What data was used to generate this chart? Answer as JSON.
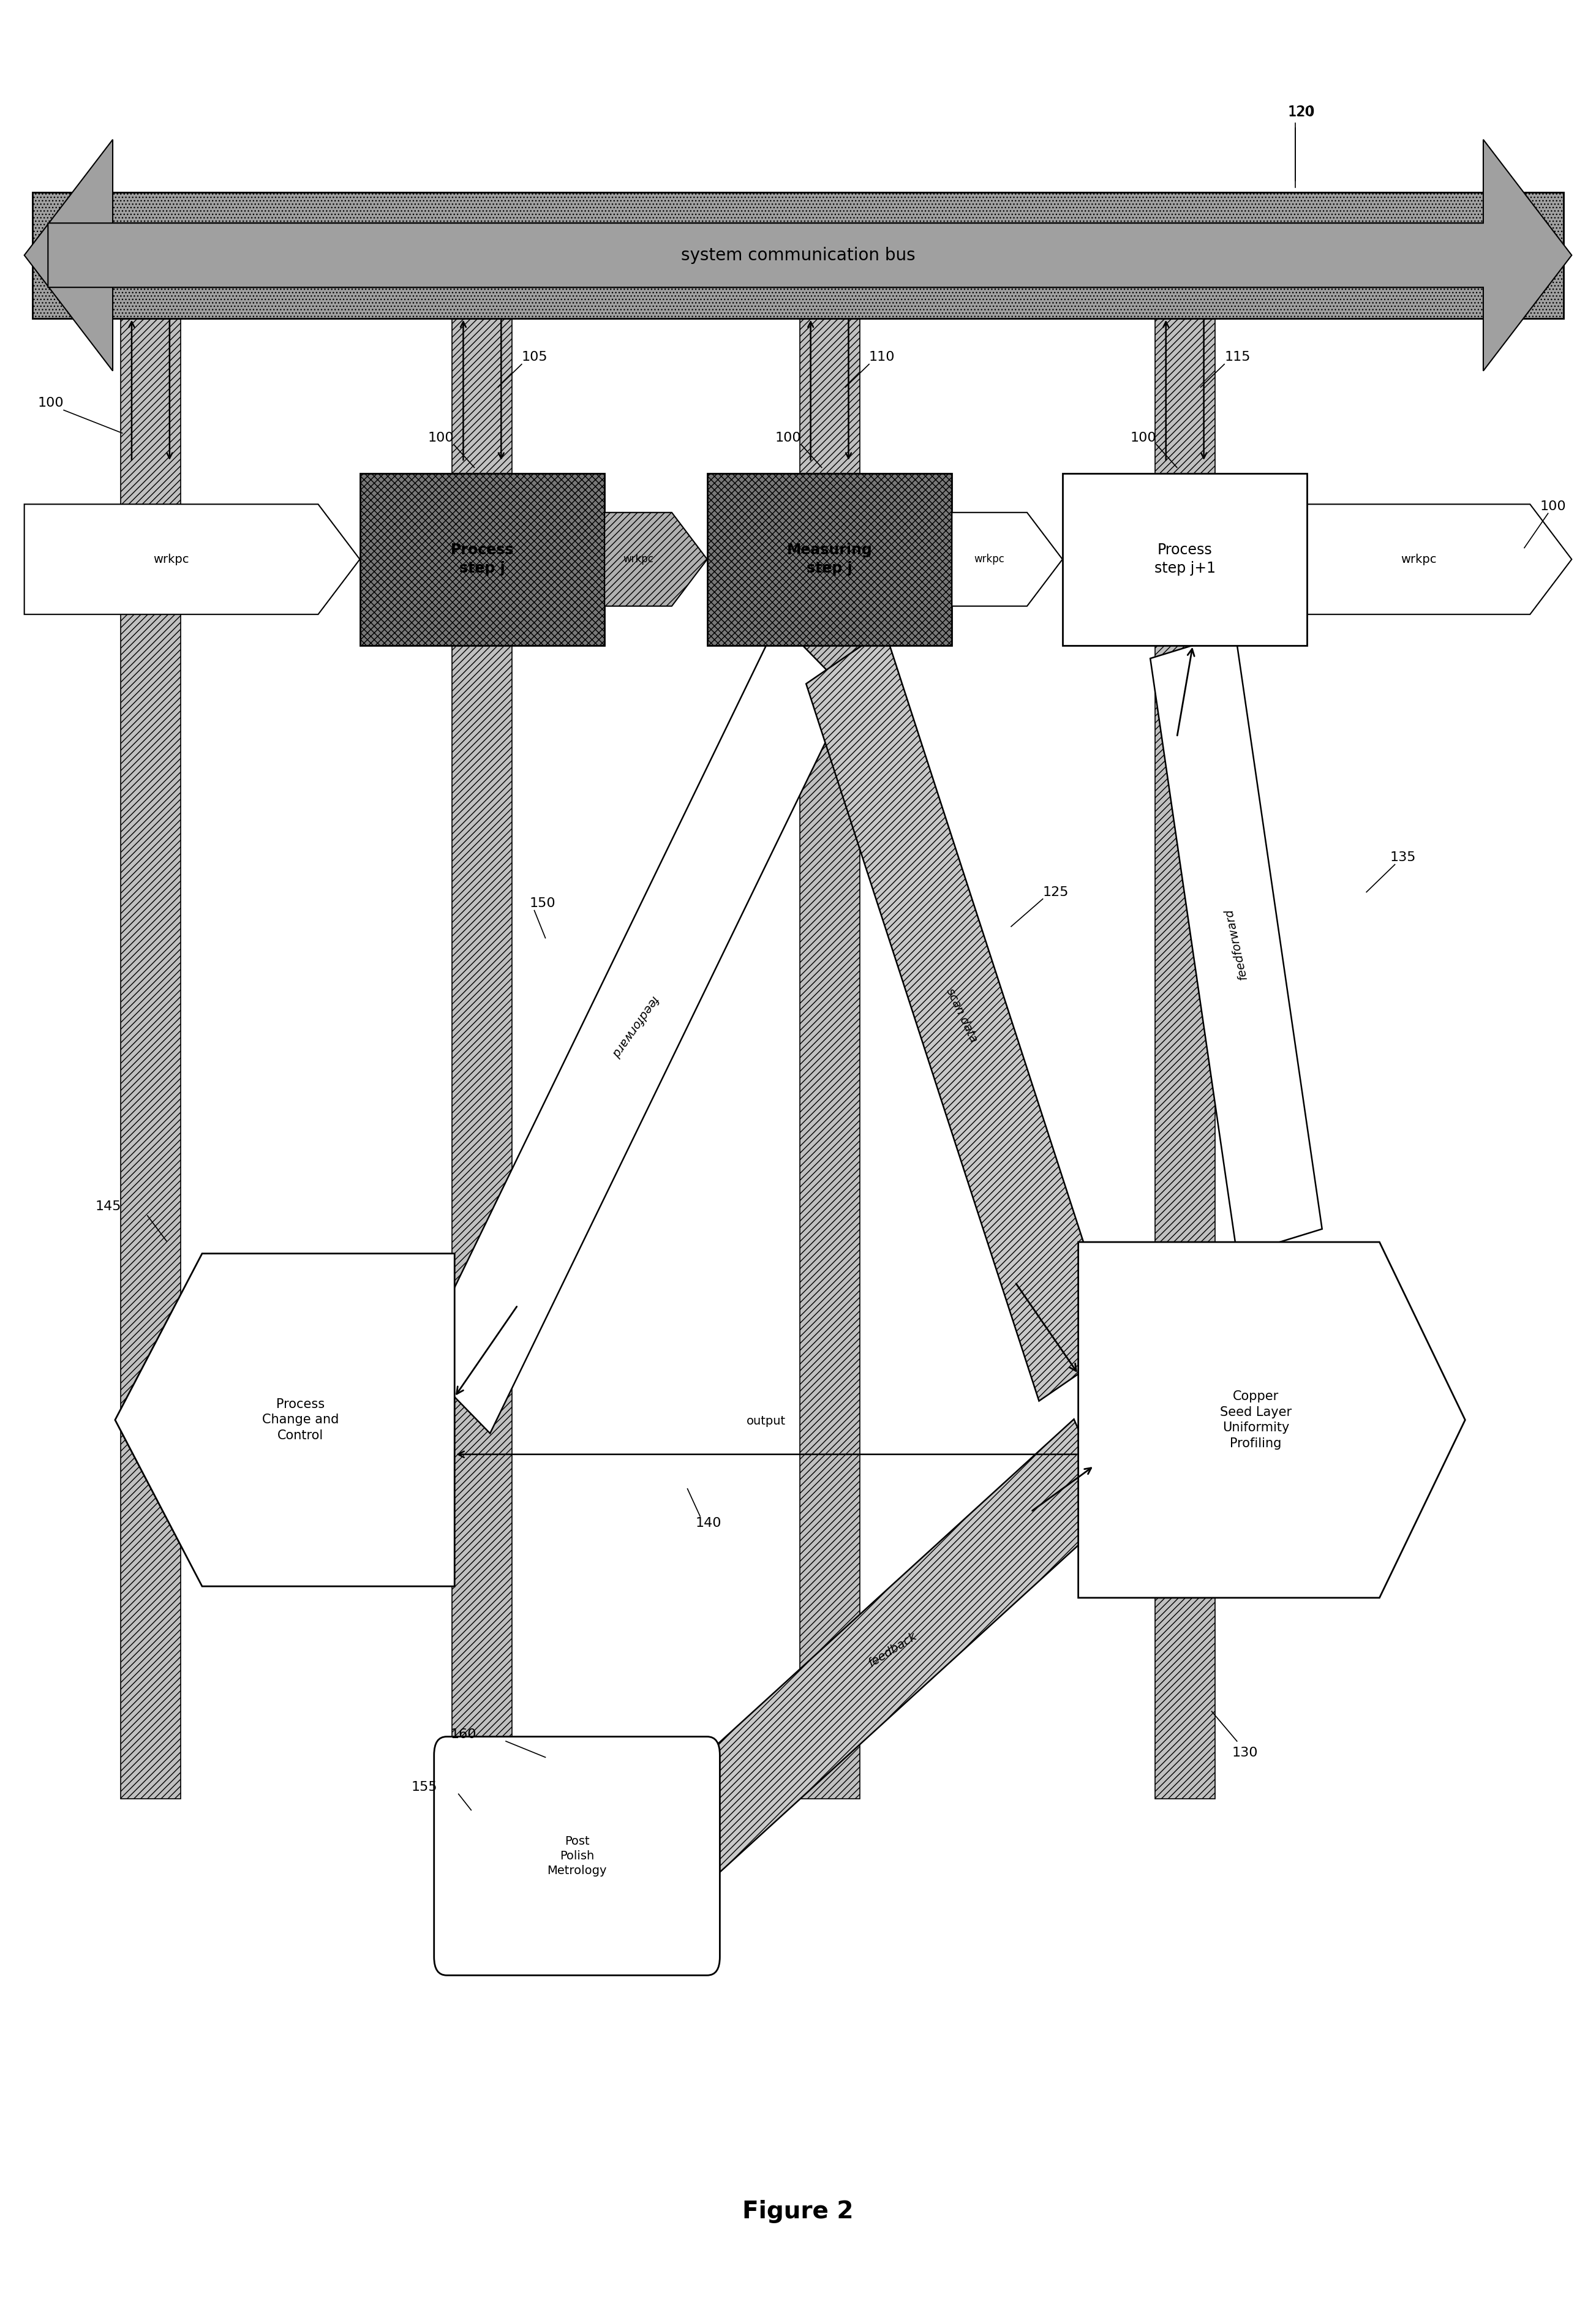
{
  "title": "Figure 2",
  "bg": "#ffffff",
  "fw": 26.06,
  "fh": 37.75,
  "bus_label": "system communication bus",
  "process_j_label": "Process\nstep j",
  "measuring_j_label": "Measuring\nstep j",
  "process_j1_label": "Process\nstep j+1",
  "wrkpc": "wrkpc",
  "feedforward": "feedforward",
  "scan_data": "scan data",
  "output_lbl": "output",
  "feedback_lbl": "feedback",
  "pcc_label": "Process\nChange and\nControl",
  "csl_label": "Copper\nSeed Layer\nUniformity\nProfiling",
  "ppm_label": "Post\nPolish\nMetrology",
  "dark_box": "#808080",
  "col_fill": "#c0c0c0",
  "bus_fill": "#a0a0a0",
  "scan_fill": "#c8c8c8",
  "white": "#ffffff",
  "black": "#000000"
}
